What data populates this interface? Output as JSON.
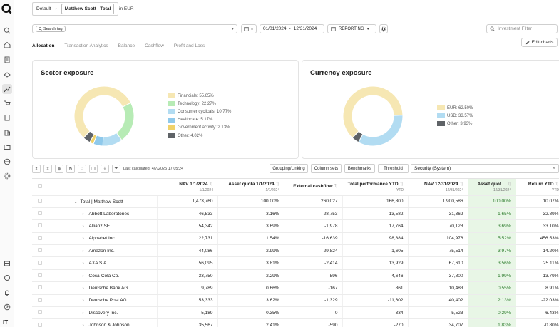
{
  "breadcrumb": {
    "root": "Default",
    "current": "Matthew Scott | Total"
  },
  "currency_label": "in EUR",
  "search": {
    "tag": "Search tag",
    "caret": "▾"
  },
  "dates": {
    "from": "01/01/2024",
    "sep": "-",
    "to": "12/31/2024"
  },
  "reporting": "REPORTING",
  "investment_filter_placeholder": "Investment Filter",
  "edit_charts": "Edit charts",
  "tabs": [
    "Allocation",
    "Transaction Analytics",
    "Balance",
    "Cashflow",
    "Profit and Loss"
  ],
  "sector": {
    "title": "Sector exposure",
    "items": [
      {
        "label": "Financials: 55.65%",
        "value": 55.65,
        "color": "#f6e7b3"
      },
      {
        "label": "Technology: 22.27%",
        "value": 22.27,
        "color": "#b7ebb5"
      },
      {
        "label": "Consumer cyclicals: 10.77%",
        "value": 10.77,
        "color": "#b2dcf2"
      },
      {
        "label": "Healthcare: 5.17%",
        "value": 5.17,
        "color": "#8fc9eb"
      },
      {
        "label": "Government activity: 2.13%",
        "value": 2.13,
        "color": "#f0d26a"
      },
      {
        "label": "Other: 4.02%",
        "value": 4.02,
        "color": "#5f6367"
      }
    ]
  },
  "currency": {
    "title": "Currency exposure",
    "items": [
      {
        "label": "EUR: 62.50%",
        "value": 62.5,
        "color": "#f6e7b3"
      },
      {
        "label": "USD: 33.57%",
        "value": 33.57,
        "color": "#b2dcf2"
      },
      {
        "label": "Other: 3.93%",
        "value": 3.93,
        "color": "#5f6367"
      }
    ]
  },
  "grid_toolbar": {
    "last_calculated": "Last calculated: 4/7/2025 17:05:24",
    "grouping": "Grouping/Linking",
    "column_sets": "Column sets",
    "benchmarks": "Benchmarks",
    "threshold": "Threshold",
    "security_system": "Security (System)"
  },
  "columns": [
    {
      "label": "NAV 1/1/2024",
      "sub": "1/1/2024"
    },
    {
      "label": "Asset quota 1/1/2024",
      "sub": "1/1/2024"
    },
    {
      "label": "External cashflow",
      "sub": ""
    },
    {
      "label": "Total performance YTD",
      "sub": "YTD"
    },
    {
      "label": "NAV 12/31/2024",
      "sub": "12/31/2024"
    },
    {
      "label": "Asset quot…",
      "sub": "12/31/2024"
    },
    {
      "label": "Return YTD",
      "sub": "YTD"
    }
  ],
  "rows": [
    {
      "name": "Total | Matthew Scott",
      "chev": "⌄",
      "vals": [
        "1,473,760",
        "100.00%",
        "260,027",
        "166,800",
        "1,900,586",
        "100.00%",
        "10.07%"
      ]
    },
    {
      "name": "Abbott Laboratories",
      "chev": "›",
      "vals": [
        "46,533",
        "3.16%",
        "-28,753",
        "13,582",
        "31,362",
        "1.65%",
        "32.89%"
      ]
    },
    {
      "name": "Allianz SE",
      "chev": "›",
      "vals": [
        "54,342",
        "3.69%",
        "-1,978",
        "17,764",
        "70,128",
        "3.69%",
        "33.10%"
      ]
    },
    {
      "name": "Alphabet Inc.",
      "chev": "›",
      "vals": [
        "22,731",
        "1.54%",
        "-16,639",
        "98,884",
        "104,976",
        "5.52%",
        "456.53%"
      ]
    },
    {
      "name": "Amazon Inc.",
      "chev": "›",
      "vals": [
        "44,086",
        "2.99%",
        "29,824",
        "1,605",
        "75,514",
        "3.97%",
        "-14.20%"
      ]
    },
    {
      "name": "AXA S.A.",
      "chev": "›",
      "vals": [
        "56,095",
        "3.81%",
        "-2,414",
        "13,929",
        "67,610",
        "3.56%",
        "25.11%"
      ]
    },
    {
      "name": "Coca-Cola Co.",
      "chev": "›",
      "vals": [
        "33,750",
        "2.29%",
        "-596",
        "4,646",
        "37,800",
        "1.99%",
        "13.79%"
      ]
    },
    {
      "name": "Deutsche Bank AG",
      "chev": "›",
      "vals": [
        "9,789",
        "0.66%",
        "-167",
        "861",
        "10,483",
        "0.55%",
        "8.91%"
      ]
    },
    {
      "name": "Deutsche Post AG",
      "chev": "›",
      "vals": [
        "53,333",
        "3.62%",
        "-1,329",
        "-11,602",
        "40,402",
        "2.13%",
        "-22.03%"
      ]
    },
    {
      "name": "Discovery Inc.",
      "chev": "›",
      "vals": [
        "5,189",
        "0.35%",
        "0",
        "334",
        "5,523",
        "0.29%",
        "6.43%"
      ]
    },
    {
      "name": "Johnson & Johnson",
      "chev": "›",
      "vals": [
        "35,567",
        "2.41%",
        "-590",
        "-270",
        "34,707",
        "1.83%",
        "-0.80%"
      ]
    }
  ],
  "user_initials": "IT"
}
